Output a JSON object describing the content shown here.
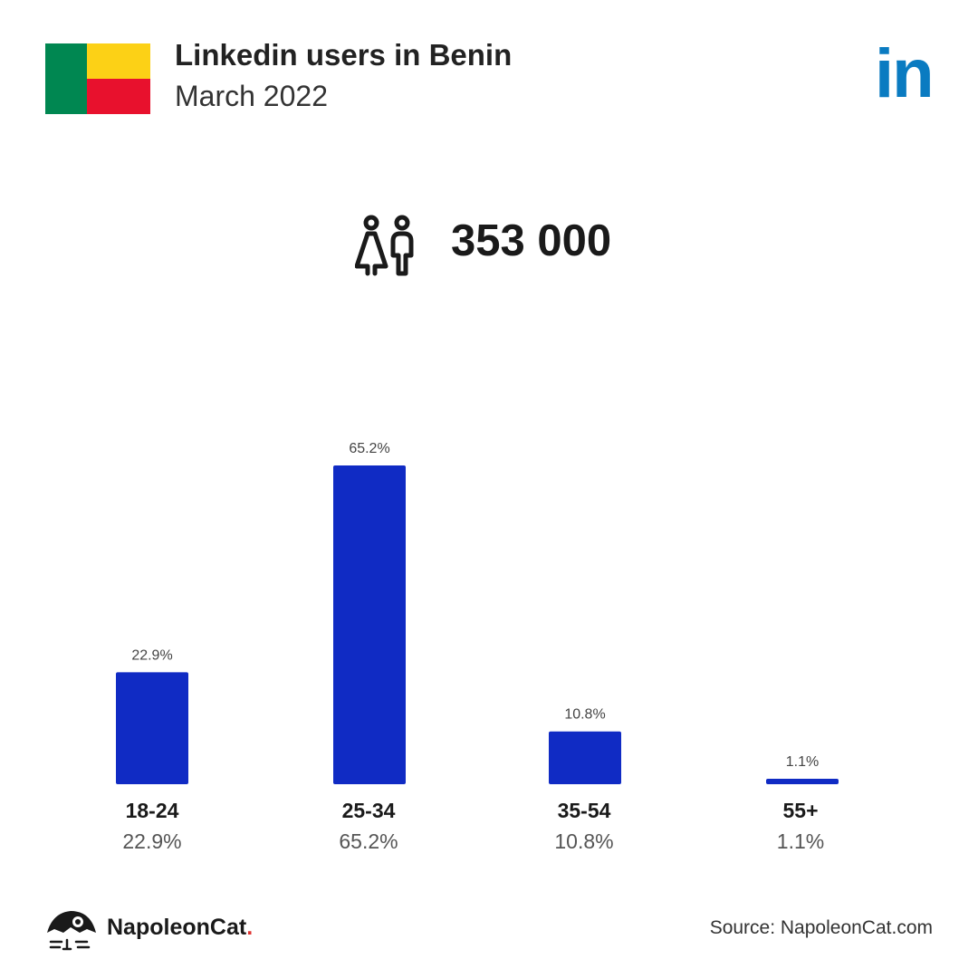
{
  "header": {
    "title": "Linkedin users in Benin",
    "subtitle": "March 2022"
  },
  "flag_colors": {
    "green": "#008751",
    "yellow": "#FCD116",
    "red": "#E8112D"
  },
  "brand_logo": {
    "text": "in",
    "color": "#0A7BC1"
  },
  "total_users": "353 000",
  "total_users_icon": "people-icon",
  "chart_data": {
    "type": "bar",
    "categories": [
      "18-24",
      "25-34",
      "35-54",
      "55+"
    ],
    "values": [
      22.9,
      65.2,
      10.8,
      1.1
    ],
    "value_labels": [
      "22.9%",
      "65.2%",
      "10.8%",
      "1.1%"
    ],
    "title": "",
    "xlabel": "",
    "ylabel": "",
    "ylim": [
      0,
      65.2
    ],
    "grid": false,
    "bar_color": "#102BC4"
  },
  "footer": {
    "brand_name": "NapoleonCat",
    "brand_dot": ".",
    "source": "Source: NapoleonCat.com"
  }
}
